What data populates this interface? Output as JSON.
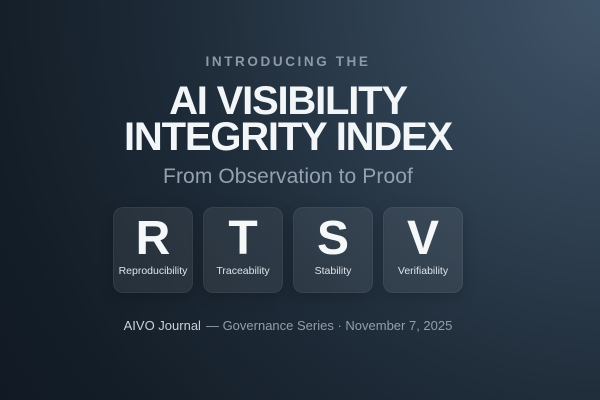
{
  "hero": {
    "eyebrow": "INTRODUCING THE",
    "title_line1": "AI VISIBILITY",
    "title_line2": "INTEGRITY INDEX",
    "subtitle": "From Observation to Proof"
  },
  "pillars": [
    {
      "letter": "R",
      "label": "Reproducibility"
    },
    {
      "letter": "T",
      "label": "Traceability"
    },
    {
      "letter": "S",
      "label": "Stability"
    },
    {
      "letter": "V",
      "label": "Verifiability"
    }
  ],
  "footer": {
    "publication": "AIVO Journal",
    "rest": "— Governance Series · November 7, 2025"
  },
  "colors": {
    "background_dark": "#101823",
    "background_light": "#41556a",
    "title": "#f3f6f8",
    "eyebrow": "#8d99a7",
    "subtitle": "#94a1ae",
    "card_background": "rgba(255,255,255,0.07)",
    "card_letter": "#f5f7f9",
    "card_label": "#dde4ea",
    "footer_primary": "#c9d2da",
    "footer_secondary": "#939ea9"
  }
}
